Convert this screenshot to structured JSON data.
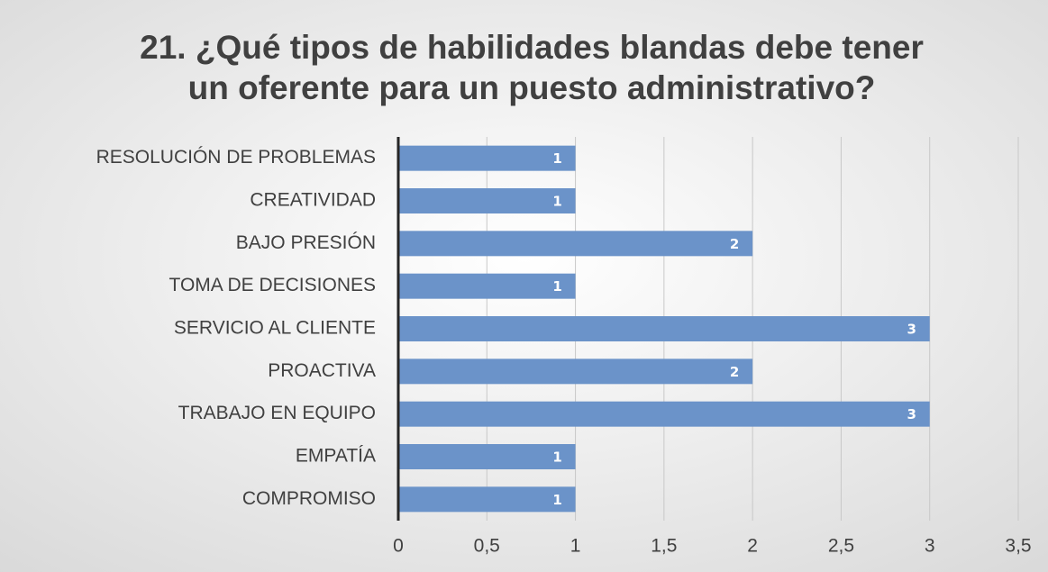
{
  "chart_data": {
    "type": "bar",
    "orientation": "horizontal",
    "title": [
      "21. ¿Qué tipos de habilidades blandas debe tener",
      "un oferente para un puesto administrativo?"
    ],
    "categories": [
      "RESOLUCIÓN DE PROBLEMAS",
      "CREATIVIDAD",
      "BAJO PRESIÓN",
      "TOMA DE DECISIONES",
      "SERVICIO AL CLIENTE",
      "PROACTIVA",
      "TRABAJO EN EQUIPO",
      "EMPATÍA",
      "COMPROMISO"
    ],
    "values": [
      1,
      1,
      2,
      1,
      3,
      2,
      3,
      1,
      1
    ],
    "color": "#6b93c9",
    "xlim": [
      0,
      3.5
    ],
    "xticks": [
      0,
      {
        "value": 0.5,
        "label": "0,5"
      },
      1,
      {
        "value": 1.5,
        "label": "1,5"
      },
      2,
      {
        "value": 2.5,
        "label": "2,5"
      },
      3,
      {
        "value": 3.5,
        "label": "3,5"
      }
    ],
    "grid": true
  }
}
